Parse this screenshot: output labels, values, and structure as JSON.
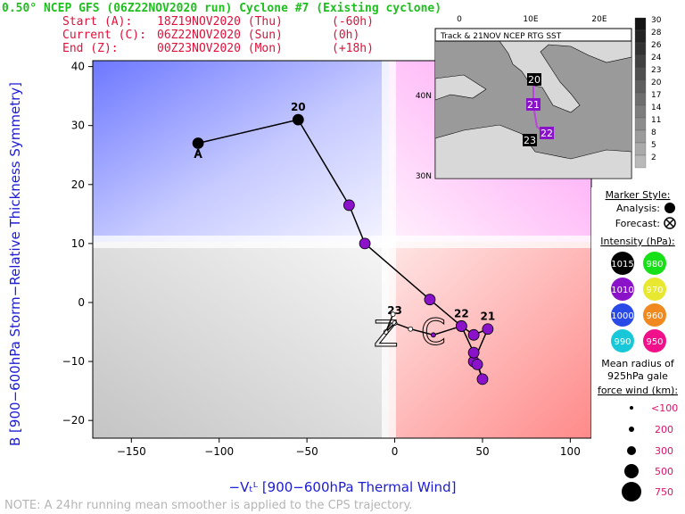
{
  "header": {
    "title": "0.50° NCEP GFS (06Z22NOV2020 run) Cyclone #7 (Existing cyclone)",
    "start_label": "Start (A):",
    "start_time": "18Z19NOV2020 (Thu)",
    "start_offset": "(-60h)",
    "current_label": "Current (C):",
    "current_time": "06Z22NOV2020 (Sun)",
    "current_offset": "(0h)",
    "end_label": "End (Z):",
    "end_time": "00Z23NOV2020 (Mon)",
    "end_offset": "(+18h)"
  },
  "note": "NOTE:  A 24hr running mean smoother is applied to the CPS trajectory.",
  "colors": {
    "header_green": "#1fbf1f",
    "header_red": "#e0103a",
    "axis_blue": "#1b1bd6",
    "track_purple": "#8a12c9"
  },
  "chart_data": {
    "type": "line",
    "xlabel": "−Vₜᴸ [900−600hPa Thermal Wind]",
    "ylabel": "B [900−600hPa Storm−Relative Thickness Symmetry]",
    "xlim": [
      -172,
      112
    ],
    "ylim": [
      -23,
      41
    ],
    "xticks": [
      -150,
      -100,
      -50,
      0,
      50,
      100
    ],
    "yticks": [
      -20,
      -10,
      0,
      10,
      20,
      30,
      40
    ],
    "xtick_labels": [
      "−150",
      "−100",
      "−50",
      "0",
      "50",
      "100"
    ],
    "ytick_labels": [
      "−20",
      "−10",
      "0",
      "10",
      "20",
      "30",
      "40"
    ],
    "track": [
      {
        "x": -112,
        "y": 27,
        "kind": "analysis",
        "color": "#000000"
      },
      {
        "x": -55,
        "y": 31,
        "kind": "analysis",
        "color": "#000000",
        "label": "20"
      },
      {
        "x": -26,
        "y": 16.5,
        "kind": "analysis",
        "color": "#8a12c9"
      },
      {
        "x": -17,
        "y": 10,
        "kind": "analysis",
        "color": "#8a12c9"
      },
      {
        "x": 20,
        "y": 0.5,
        "kind": "analysis",
        "color": "#8a12c9"
      },
      {
        "x": 38,
        "y": -4,
        "kind": "analysis",
        "color": "#8a12c9",
        "label": "22"
      },
      {
        "x": 45,
        "y": -5.5,
        "kind": "analysis",
        "color": "#8a12c9"
      },
      {
        "x": 53,
        "y": -4.5,
        "kind": "analysis",
        "color": "#8a12c9",
        "label": "21"
      },
      {
        "x": 45,
        "y": -10,
        "kind": "analysis",
        "color": "#8a12c9"
      },
      {
        "x": 47,
        "y": -10.5,
        "kind": "analysis",
        "color": "#8a12c9"
      },
      {
        "x": 50,
        "y": -13,
        "kind": "analysis",
        "color": "#8a12c9"
      },
      {
        "x": 45,
        "y": -8.5,
        "kind": "analysis",
        "color": "#8a12c9"
      },
      {
        "x": 38,
        "y": -4,
        "kind": "analysis",
        "color": "#8a12c9"
      },
      {
        "x": 22,
        "y": -5.5,
        "kind": "forecast",
        "color": "#8a12c9"
      },
      {
        "x": 9,
        "y": -4.5,
        "kind": "forecast",
        "color": "#ffffff"
      },
      {
        "x": 0,
        "y": -3.5,
        "kind": "forecast",
        "color": "#ffffff",
        "label": "23"
      },
      {
        "x": -5,
        "y": -5,
        "kind": "forecast",
        "color": "#ffffff"
      },
      {
        "x": -1,
        "y": -2,
        "kind": "forecast",
        "color": "#ffffff"
      }
    ],
    "markers": {
      "start": "A",
      "current": "C",
      "end": "Z"
    }
  },
  "inset_map": {
    "title": "Track & 21NOV NCEP RTG SST",
    "lon_labels": [
      "0",
      "10E",
      "20E"
    ],
    "lat_labels": [
      "40N",
      "30N"
    ],
    "day_labels": [
      "20",
      "21",
      "22",
      "23"
    ],
    "colorbar_labels": [
      "30",
      "28",
      "26",
      "24",
      "23",
      "20",
      "17",
      "14",
      "11",
      "8",
      "5",
      "2"
    ]
  },
  "legend": {
    "marker_style_title": "Marker Style:",
    "analysis_label": "Analysis:",
    "forecast_label": "Forecast:",
    "intensity_title": "Intensity (hPa):",
    "intensity": [
      {
        "value": "1015",
        "color": "#000000",
        "text": "#ffffff"
      },
      {
        "value": "980",
        "color": "#18e018",
        "text": "#ffffff"
      },
      {
        "value": "1010",
        "color": "#8a12c9",
        "text": "#ffffff"
      },
      {
        "value": "970",
        "color": "#e8e830",
        "text": "#ffffff"
      },
      {
        "value": "1000",
        "color": "#2a4ae8",
        "text": "#ffffff"
      },
      {
        "value": "960",
        "color": "#f08a20",
        "text": "#ffffff"
      },
      {
        "value": "990",
        "color": "#18c8d8",
        "text": "#ffffff"
      },
      {
        "value": "950",
        "color": "#f0108a",
        "text": "#ffffff"
      }
    ],
    "radius_title_1": "Mean radius of",
    "radius_title_2": "925hPa gale",
    "radius_title_3": "force wind (km):",
    "radius_sizes": [
      "<100",
      "200",
      "300",
      "500",
      "750"
    ]
  }
}
